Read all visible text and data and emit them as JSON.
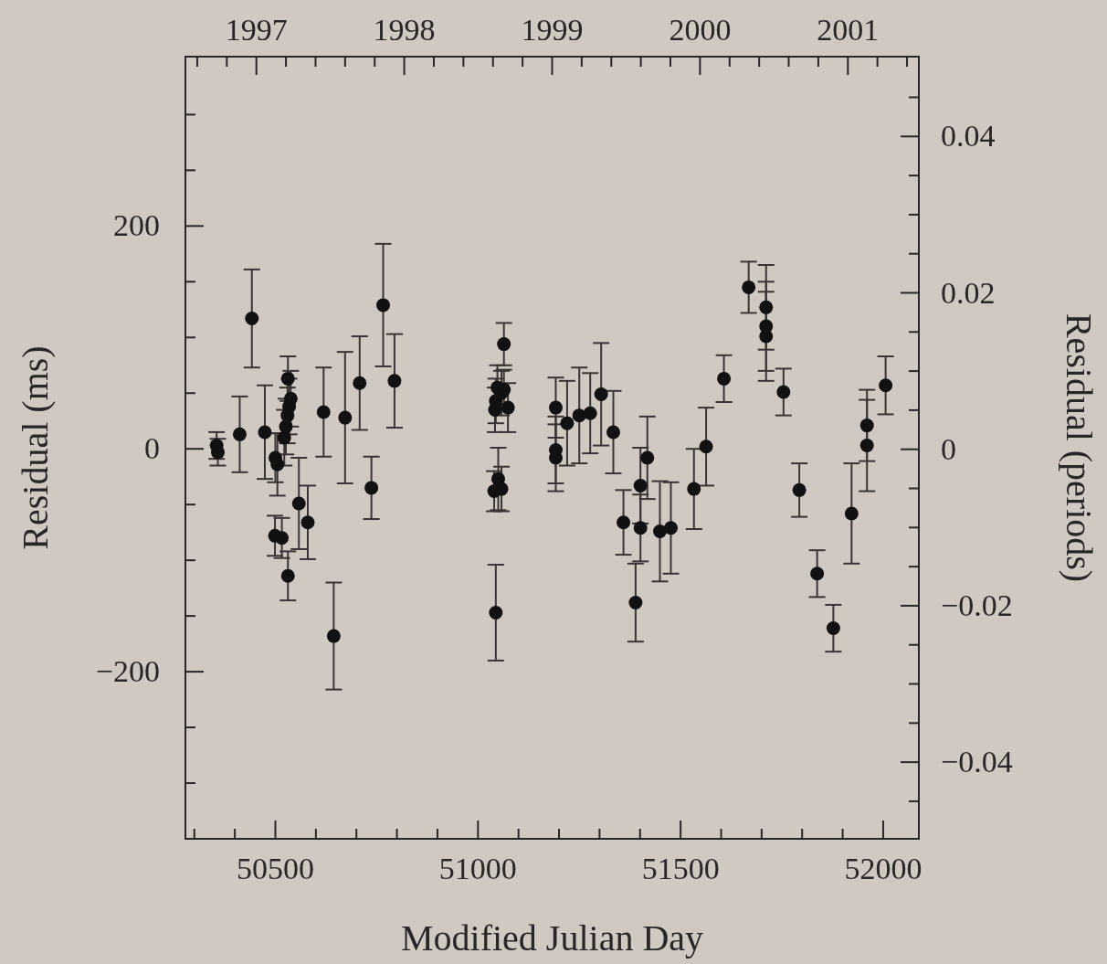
{
  "chart_data": {
    "type": "scatter",
    "xlabel": "Modified Julian Day",
    "ylabel": "Residual (ms)",
    "y2label": "Residual (periods)",
    "xlim": [
      50278,
      52088
    ],
    "ylim": [
      -350,
      352
    ],
    "y2lim": [
      -0.0498,
      0.0502
    ],
    "x2lim": [
      1996.52,
      2001.48
    ],
    "xticks": [
      {
        "value": 50300,
        "label": null
      },
      {
        "value": 50400,
        "label": null
      },
      50500,
      {
        "value": 50600,
        "label": null
      },
      {
        "value": 50700,
        "label": null
      },
      {
        "value": 50800,
        "label": null
      },
      {
        "value": 50900,
        "label": null
      },
      51000,
      {
        "value": 51100,
        "label": null
      },
      {
        "value": 51200,
        "label": null
      },
      {
        "value": 51300,
        "label": null
      },
      {
        "value": 51400,
        "label": null
      },
      51500,
      {
        "value": 51600,
        "label": null
      },
      {
        "value": 51700,
        "label": null
      },
      {
        "value": 51800,
        "label": null
      },
      {
        "value": 51900,
        "label": null
      },
      52000
    ],
    "yticks": [
      {
        "value": -300,
        "label": null
      },
      {
        "value": -250,
        "label": null
      },
      {
        "value": -200,
        "label": "−200"
      },
      {
        "value": -150,
        "label": null
      },
      {
        "value": -100,
        "label": null
      },
      {
        "value": -50,
        "label": null
      },
      0,
      {
        "value": 50,
        "label": null
      },
      {
        "value": 100,
        "label": null
      },
      {
        "value": 150,
        "label": null
      },
      200,
      {
        "value": 250,
        "label": null
      },
      {
        "value": 300,
        "label": null
      }
    ],
    "y2ticks": [
      {
        "value": -0.045,
        "label": null
      },
      {
        "value": -0.04,
        "label": "−0.04"
      },
      {
        "value": -0.035,
        "label": null
      },
      {
        "value": -0.03,
        "label": null
      },
      {
        "value": -0.025,
        "label": null
      },
      {
        "value": -0.02,
        "label": "−0.02"
      },
      {
        "value": -0.015,
        "label": null
      },
      {
        "value": -0.01,
        "label": null
      },
      {
        "value": -0.005,
        "label": null
      },
      0,
      {
        "value": 0.005,
        "label": null
      },
      {
        "value": 0.01,
        "label": null
      },
      {
        "value": 0.015,
        "label": null
      },
      0.02,
      {
        "value": 0.025,
        "label": null
      },
      {
        "value": 0.03,
        "label": null
      },
      {
        "value": 0.035,
        "label": null
      },
      0.04,
      {
        "value": 0.045,
        "label": null
      }
    ],
    "x2ticks": [
      {
        "value": 1996.6,
        "label": null
      },
      {
        "value": 1996.8,
        "label": null
      },
      1997,
      {
        "value": 1997.2,
        "label": null
      },
      {
        "value": 1997.4,
        "label": null
      },
      {
        "value": 1997.6,
        "label": null
      },
      {
        "value": 1997.8,
        "label": null
      },
      1998,
      {
        "value": 1998.2,
        "label": null
      },
      {
        "value": 1998.4,
        "label": null
      },
      {
        "value": 1998.6,
        "label": null
      },
      {
        "value": 1998.8,
        "label": null
      },
      1999,
      {
        "value": 1999.2,
        "label": null
      },
      {
        "value": 1999.4,
        "label": null
      },
      {
        "value": 1999.6,
        "label": null
      },
      {
        "value": 1999.8,
        "label": null
      },
      2000,
      {
        "value": 2000.2,
        "label": null
      },
      {
        "value": 2000.4,
        "label": null
      },
      {
        "value": 2000.6,
        "label": null
      },
      {
        "value": 2000.8,
        "label": null
      },
      2001,
      {
        "value": 2001.2,
        "label": null
      },
      {
        "value": 2001.4,
        "label": null
      }
    ],
    "marker": "circle",
    "grid": false,
    "series": [
      {
        "color": "#111111",
        "x": [
          50355,
          50358,
          50412,
          50442,
          50474,
          50500,
          50505,
          50499,
          50516,
          50531,
          50531,
          50522,
          50526,
          50530,
          50534,
          50538,
          50558,
          50580,
          50619,
          50644,
          50672,
          50708,
          50737,
          50766,
          50794,
          51064,
          51044,
          51048,
          51058,
          51064,
          51074,
          51042,
          51040,
          51050,
          51058,
          51044,
          51192,
          51192,
          51192,
          51220,
          51250,
          51277,
          51304,
          51334,
          51359,
          51401,
          51401,
          51389,
          51418,
          51449,
          51476,
          51533,
          51563,
          51607,
          51668,
          51711,
          51711,
          51711,
          51754,
          51793,
          51837,
          51877,
          51922,
          51960,
          51960,
          52006
        ],
        "values": [
          3,
          -3,
          13,
          117,
          15,
          -8,
          -14,
          -78,
          -80,
          -114,
          63,
          10,
          20,
          30,
          38,
          45,
          -49,
          -66,
          33,
          -168,
          28,
          59,
          -35,
          129,
          61,
          94,
          43,
          55,
          50,
          53,
          37,
          35,
          -38,
          -27,
          -36,
          -147,
          37,
          -1,
          -8,
          23,
          30,
          32,
          49,
          15,
          -66,
          -33,
          -71,
          -138,
          -8,
          -74,
          -71,
          -36,
          2,
          63,
          145,
          127,
          110,
          101,
          51,
          -37,
          -112,
          -161,
          -58,
          21,
          3,
          57
        ],
        "errors": [
          12,
          12,
          34,
          44,
          42,
          22,
          28,
          18,
          18,
          22,
          20,
          25,
          25,
          25,
          25,
          25,
          41,
          33,
          40,
          48,
          59,
          42,
          28,
          55,
          42,
          19,
          20,
          20,
          20,
          18,
          22,
          20,
          18,
          28,
          20,
          43,
          27,
          30,
          30,
          38,
          43,
          36,
          46,
          37,
          29,
          34,
          30,
          35,
          37,
          45,
          41,
          36,
          35,
          21,
          23,
          38,
          40,
          40,
          21,
          24,
          21,
          21,
          45,
          32,
          41,
          26
        ]
      }
    ]
  }
}
